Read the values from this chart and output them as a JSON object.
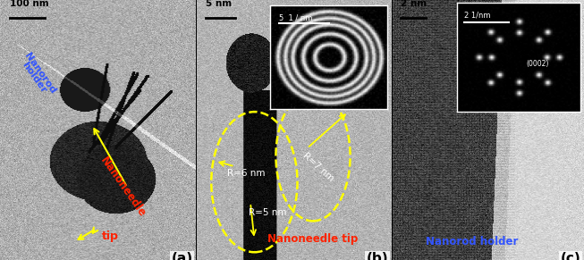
{
  "panel_a": {
    "label": "(a)",
    "scalebar_text": "100 nm",
    "tip_text": "tip",
    "nanoneedle_text": "Nanoneedle",
    "nanorod_text": "Nanorod\nholder"
  },
  "panel_b": {
    "label": "(b)",
    "scalebar_text": "5 nm",
    "title_text": "Nanoneedle tip",
    "r5_text": "R=5 nm",
    "r6_text": "R=6 nm",
    "r7_text": "R=7 nm",
    "inset_scale": "5  1 / nm"
  },
  "panel_c": {
    "label": "(c)",
    "scalebar_text": "2 nm",
    "title_text": "Nanorod holder",
    "inset_scale": "2 1/nm",
    "inset_label": "(0002)"
  },
  "red_color": "#ff2200",
  "blue_color": "#3355ff",
  "yellow_color": "#ffff00",
  "white_color": "#ffffff",
  "black_color": "#000000",
  "figure_width": 6.53,
  "figure_height": 2.91
}
